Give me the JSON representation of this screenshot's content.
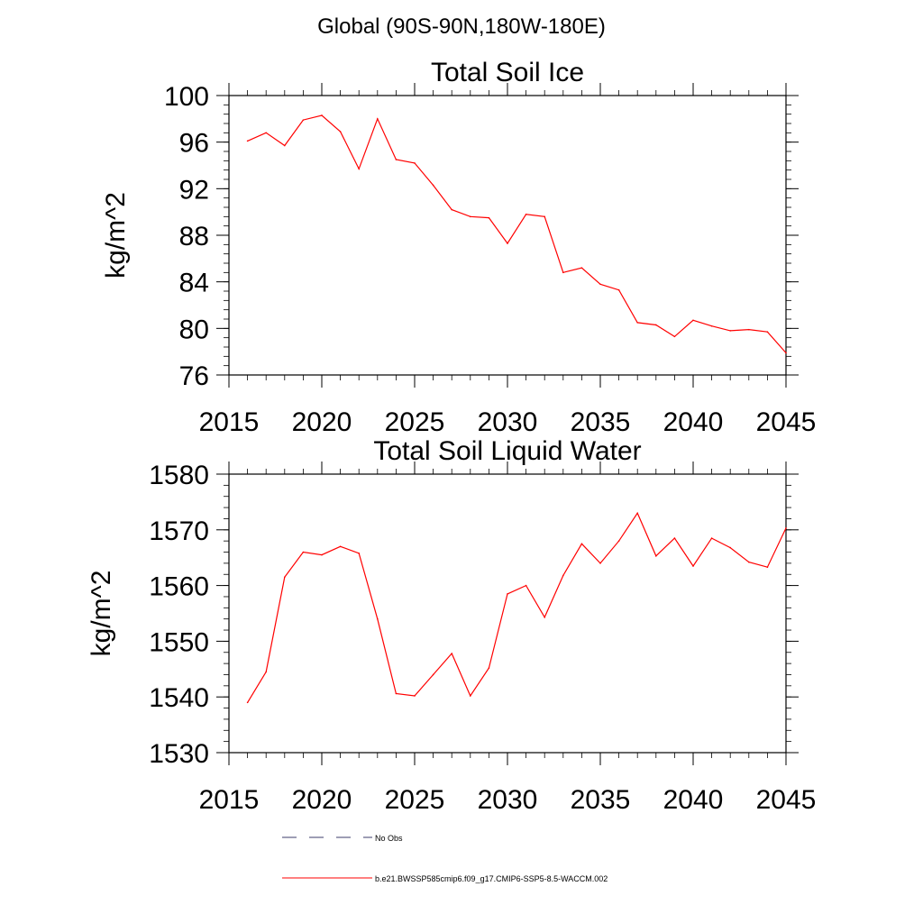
{
  "page": {
    "title": "Global (90S-90N,180W-180E)"
  },
  "chart_data": [
    {
      "type": "line",
      "title": "Total Soil Ice",
      "ylabel": "kg/m^2",
      "xlabel": "",
      "xlim": [
        2015,
        2045
      ],
      "ylim": [
        76,
        100
      ],
      "xticks": [
        2015,
        2020,
        2025,
        2030,
        2035,
        2040,
        2045
      ],
      "yticks": [
        76,
        80,
        84,
        88,
        92,
        96,
        100
      ],
      "grid": false,
      "series": [
        {
          "color": "#ff0000",
          "x": [
            2016,
            2017,
            2018,
            2019,
            2020,
            2021,
            2022,
            2023,
            2024,
            2025,
            2026,
            2027,
            2028,
            2029,
            2030,
            2031,
            2032,
            2033,
            2034,
            2035,
            2036,
            2037,
            2038,
            2039,
            2040,
            2041,
            2042,
            2043,
            2044,
            2045
          ],
          "values": [
            96.1,
            96.8,
            95.7,
            97.9,
            98.3,
            96.9,
            93.7,
            98.0,
            94.5,
            94.2,
            92.3,
            90.2,
            89.6,
            89.5,
            87.3,
            89.8,
            89.6,
            84.8,
            85.2,
            83.8,
            83.3,
            80.5,
            80.3,
            79.3,
            80.7,
            80.2,
            79.8,
            79.9,
            79.7,
            77.9
          ]
        }
      ]
    },
    {
      "type": "line",
      "title": "Total Soil Liquid Water",
      "ylabel": "kg/m^2",
      "xlabel": "",
      "xlim": [
        2015,
        2045
      ],
      "ylim": [
        1530,
        1580
      ],
      "xticks": [
        2015,
        2020,
        2025,
        2030,
        2035,
        2040,
        2045
      ],
      "yticks": [
        1530,
        1540,
        1550,
        1560,
        1570,
        1580
      ],
      "grid": false,
      "series": [
        {
          "color": "#ff0000",
          "x": [
            2016,
            2017,
            2018,
            2019,
            2020,
            2021,
            2022,
            2023,
            2024,
            2025,
            2026,
            2027,
            2028,
            2029,
            2030,
            2031,
            2032,
            2033,
            2034,
            2035,
            2036,
            2037,
            2038,
            2039,
            2040,
            2041,
            2042,
            2043,
            2044,
            2045
          ],
          "values": [
            1539,
            1544.5,
            1561.5,
            1566,
            1565.5,
            1567,
            1565.8,
            1554,
            1540.6,
            1540.2,
            1544,
            1547.8,
            1540.2,
            1545.2,
            1558.5,
            1560,
            1554.3,
            1561.8,
            1567.5,
            1564,
            1568,
            1573,
            1565.3,
            1568.5,
            1563.5,
            1568.5,
            1566.8,
            1564.2,
            1563.3,
            1570.3
          ]
        }
      ]
    }
  ],
  "legend": [
    {
      "label": "No Obs",
      "color": "#3d3d6b",
      "dash": "dashed"
    },
    {
      "label": "b.e21.BWSSP585cmip6.f09_g17.CMIP6-SSP5-8.5-WACCM.002",
      "color": "#ff0000",
      "dash": "solid"
    }
  ]
}
